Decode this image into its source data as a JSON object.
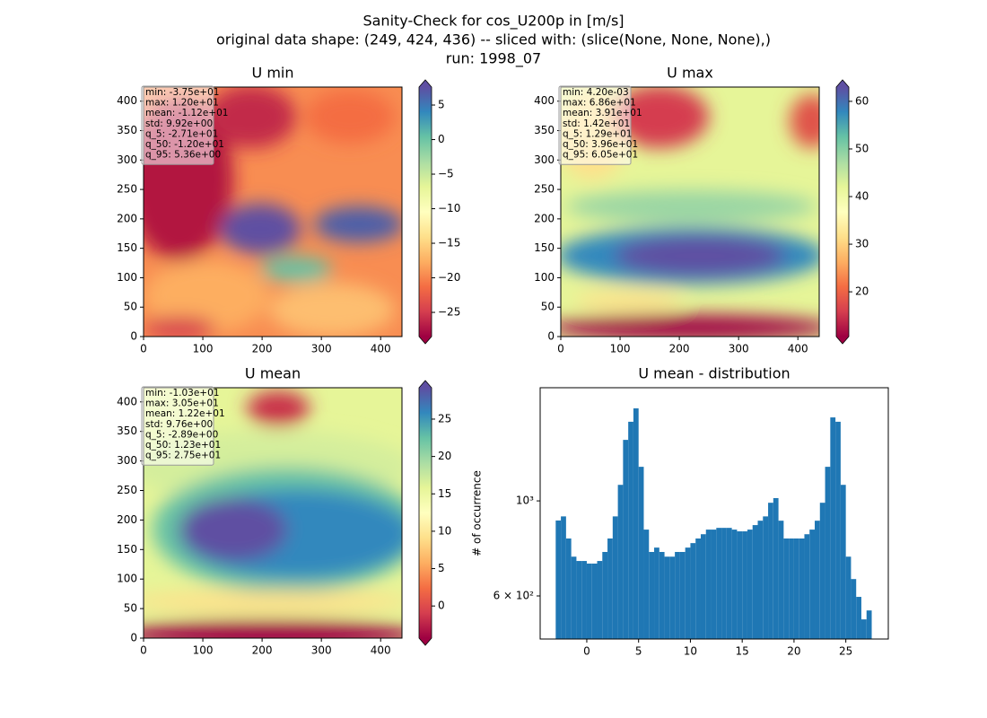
{
  "figure_title": [
    "Sanity-Check for cos_U200p in [m/s]",
    "original data shape: (249, 424, 436) -- sliced with: (slice(None, None, None),)",
    "run: 1998_07"
  ],
  "chart_data": [
    {
      "type": "heatmap",
      "title": "U min",
      "colormap": "Spectral",
      "xlim": [
        0,
        436
      ],
      "ylim": [
        0,
        424
      ],
      "xticks": [
        0,
        100,
        200,
        300,
        400
      ],
      "yticks": [
        0,
        50,
        100,
        150,
        200,
        250,
        300,
        350,
        400
      ],
      "clim": [
        -28.5,
        7.6
      ],
      "cticks": [
        {
          "value": -25,
          "label": "−25"
        },
        {
          "value": -20,
          "label": "−20"
        },
        {
          "value": -15,
          "label": "−15"
        },
        {
          "value": -10,
          "label": "−10"
        },
        {
          "value": -5,
          "label": "−5"
        },
        0,
        5
      ],
      "stats": [
        "min: -3.75e+01",
        "max: 1.20e+01",
        "mean: -1.12e+01",
        "std: 9.92e+00",
        "q_5: -2.71e+01",
        "q_50: -1.20e+01",
        "q_95: 5.36e+00"
      ]
    },
    {
      "type": "heatmap",
      "title": "U max",
      "colormap": "Spectral",
      "xlim": [
        0,
        436
      ],
      "ylim": [
        0,
        424
      ],
      "xticks": [
        0,
        100,
        200,
        300,
        400
      ],
      "yticks": [
        0,
        50,
        100,
        150,
        200,
        250,
        300,
        350,
        400
      ],
      "clim": [
        10.6,
        63
      ],
      "cticks": [
        20,
        30,
        40,
        50,
        60
      ],
      "stats": [
        "min: 4.20e-03",
        "max: 6.86e+01",
        "mean: 3.91e+01",
        "std: 1.42e+01",
        "q_5: 1.29e+01",
        "q_50: 3.96e+01",
        "q_95: 6.05e+01"
      ]
    },
    {
      "type": "heatmap",
      "title": "U mean",
      "colormap": "Spectral",
      "xlim": [
        0,
        436
      ],
      "ylim": [
        0,
        424
      ],
      "xticks": [
        0,
        100,
        200,
        300,
        400
      ],
      "yticks": [
        0,
        50,
        100,
        150,
        200,
        250,
        300,
        350,
        400
      ],
      "clim": [
        -4.3,
        29.2
      ],
      "cticks": [
        0,
        5,
        10,
        15,
        20,
        25
      ],
      "stats": [
        "min: -1.03e+01",
        "max: 3.05e+01",
        "mean: 1.22e+01",
        "std: 9.76e+00",
        "q_5: -2.89e+00",
        "q_50: 1.23e+01",
        "q_95: 2.75e+01"
      ]
    },
    {
      "type": "histogram",
      "title": "U mean - distribution",
      "ylabel": "# of occurrence",
      "color": "#1f77b4",
      "bins": [
        -3,
        -2.5,
        -2,
        -1.5,
        -1,
        -0.5,
        0,
        0.5,
        1,
        1.5,
        2,
        2.5,
        3,
        3.5,
        4,
        4.5,
        5,
        5.5,
        6,
        6.5,
        7,
        7.5,
        8,
        8.5,
        9,
        9.5,
        10,
        10.5,
        11,
        11.5,
        12,
        12.5,
        13,
        13.5,
        14,
        14.5,
        15,
        15.5,
        16,
        16.5,
        17,
        17.5,
        18,
        18.5,
        19,
        19.5,
        20,
        20.5,
        21,
        21.5,
        22,
        22.5,
        23,
        23.5,
        24,
        24.5,
        25,
        25.5,
        26,
        26.5,
        27,
        27.5
      ],
      "values": [
        900,
        920,
        817,
        741,
        724,
        724,
        714,
        714,
        724,
        760,
        817,
        920,
        1090,
        1388,
        1530,
        1644,
        1201,
        857,
        760,
        778,
        760,
        741,
        741,
        760,
        760,
        778,
        797,
        817,
        836,
        857,
        857,
        865,
        865,
        865,
        857,
        849,
        849,
        857,
        878,
        899,
        920,
        990,
        1015,
        899,
        817,
        817,
        817,
        817,
        836,
        857,
        899,
        990,
        1201,
        1566,
        1530,
        1090,
        741,
        657,
        597,
        529,
        555
      ],
      "xlim": [
        -4.5,
        29.1
      ],
      "xticks": [
        0,
        5,
        10,
        15,
        20,
        25
      ],
      "yscale": "log",
      "ylim": [
        476,
        1837
      ],
      "yticks": [
        {
          "value": 600,
          "label": "6 × 10²"
        },
        {
          "value": 1000,
          "label": "10³"
        }
      ]
    }
  ]
}
